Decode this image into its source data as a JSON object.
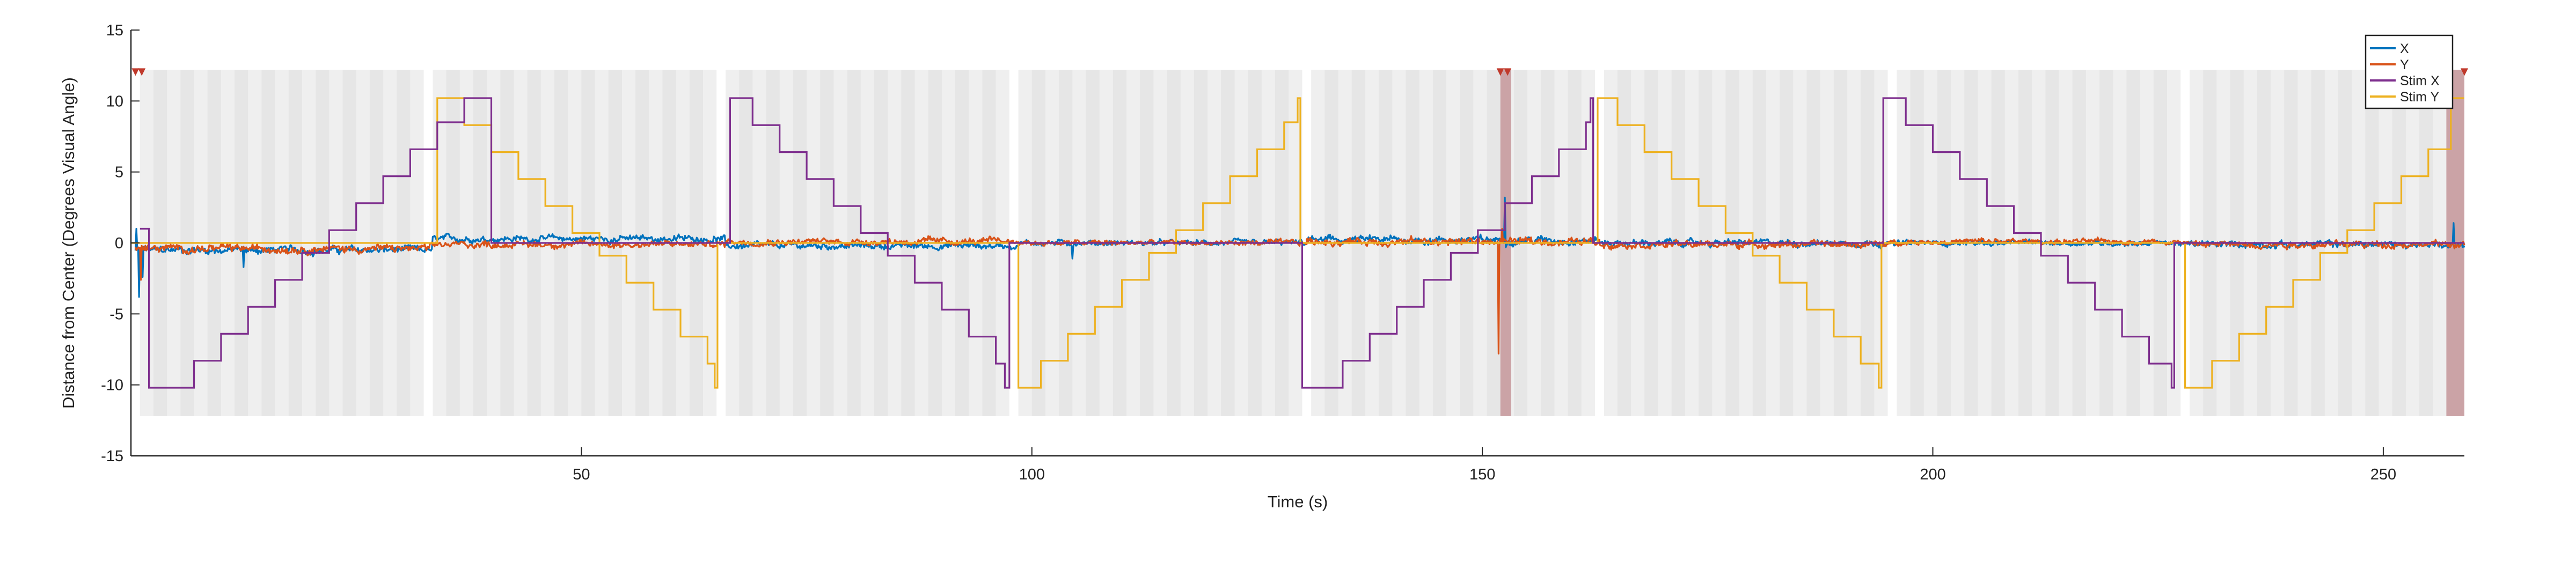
{
  "colors": {
    "x": "#0072BD",
    "y": "#D95319",
    "stim_x": "#7E2F8E",
    "stim_y": "#EDB120",
    "block_shade": "#EFEFEF",
    "stripe_shade": "#E6E6E6",
    "event_shade": "#CBA3A6",
    "event_marker": "#C0392B",
    "axis": "#262626"
  },
  "chart_data": {
    "type": "line",
    "title": "",
    "xlabel": "Time (s)",
    "ylabel": "Distance from Center (Degrees Visual Angle)",
    "xlim": [
      0,
      259
    ],
    "ylim": [
      -15,
      15
    ],
    "xticks": [
      50,
      100,
      150,
      200,
      250
    ],
    "yticks": [
      -15,
      -10,
      -5,
      0,
      5,
      10,
      15
    ],
    "grid": false,
    "legend_position": "top-right",
    "series": [
      {
        "name": "X",
        "key": "x",
        "color_key": "x"
      },
      {
        "name": "Y",
        "key": "y",
        "color_key": "y"
      },
      {
        "name": "Stim X",
        "key": "stim_x",
        "color_key": "stim_x"
      },
      {
        "name": "Stim Y",
        "key": "stim_y",
        "color_key": "stim_y"
      }
    ],
    "stim_x_steps": [
      {
        "t0": 1.0,
        "t1": 2.0,
        "v": 1.0
      },
      {
        "t0": 2.0,
        "t1": 4.0,
        "v": -10.2
      },
      {
        "t0": 4.0,
        "t1": 7.0,
        "v": -10.2
      },
      {
        "t0": 7.0,
        "t1": 10.0,
        "v": -8.3
      },
      {
        "t0": 10.0,
        "t1": 13.0,
        "v": -6.4
      },
      {
        "t0": 13.0,
        "t1": 16.0,
        "v": -4.5
      },
      {
        "t0": 16.0,
        "t1": 19.0,
        "v": -2.6
      },
      {
        "t0": 19.0,
        "t1": 22.0,
        "v": -0.7
      },
      {
        "t0": 22.0,
        "t1": 25.0,
        "v": 0.9
      },
      {
        "t0": 25.0,
        "t1": 28.0,
        "v": 2.8
      },
      {
        "t0": 28.0,
        "t1": 31.0,
        "v": 4.7
      },
      {
        "t0": 31.0,
        "t1": 34.0,
        "v": 6.6
      },
      {
        "t0": 34.0,
        "t1": 37.0,
        "v": 8.5
      },
      {
        "t0": 37.0,
        "t1": 40.0,
        "v": 10.2
      },
      {
        "t0": 40.0,
        "t1": 66.5,
        "v": 0.0
      },
      {
        "t0": 66.5,
        "t1": 69.0,
        "v": 10.2
      },
      {
        "t0": 69.0,
        "t1": 72.0,
        "v": 8.3
      },
      {
        "t0": 72.0,
        "t1": 75.0,
        "v": 6.4
      },
      {
        "t0": 75.0,
        "t1": 78.0,
        "v": 4.5
      },
      {
        "t0": 78.0,
        "t1": 81.0,
        "v": 2.6
      },
      {
        "t0": 81.0,
        "t1": 84.0,
        "v": 0.7
      },
      {
        "t0": 84.0,
        "t1": 87.0,
        "v": -0.9
      },
      {
        "t0": 87.0,
        "t1": 90.0,
        "v": -2.8
      },
      {
        "t0": 90.0,
        "t1": 93.0,
        "v": -4.7
      },
      {
        "t0": 93.0,
        "t1": 96.0,
        "v": -6.6
      },
      {
        "t0": 96.0,
        "t1": 97.0,
        "v": -8.5
      },
      {
        "t0": 97.0,
        "t1": 97.5,
        "v": -10.2
      },
      {
        "t0": 97.5,
        "t1": 130.0,
        "v": 0.0
      },
      {
        "t0": 130.0,
        "t1": 131.5,
        "v": -10.2
      },
      {
        "t0": 131.5,
        "t1": 134.5,
        "v": -10.2
      },
      {
        "t0": 134.5,
        "t1": 137.5,
        "v": -8.3
      },
      {
        "t0": 137.5,
        "t1": 140.5,
        "v": -6.4
      },
      {
        "t0": 140.5,
        "t1": 143.5,
        "v": -4.5
      },
      {
        "t0": 143.5,
        "t1": 146.5,
        "v": -2.6
      },
      {
        "t0": 146.5,
        "t1": 149.5,
        "v": -0.7
      },
      {
        "t0": 149.5,
        "t1": 152.5,
        "v": 0.9
      },
      {
        "t0": 152.5,
        "t1": 155.5,
        "v": 2.8
      },
      {
        "t0": 155.5,
        "t1": 158.5,
        "v": 4.7
      },
      {
        "t0": 158.5,
        "t1": 161.5,
        "v": 6.6
      },
      {
        "t0": 161.5,
        "t1": 162.0,
        "v": 8.5
      },
      {
        "t0": 162.0,
        "t1": 162.3,
        "v": 10.2
      },
      {
        "t0": 162.3,
        "t1": 194.5,
        "v": 0.0
      },
      {
        "t0": 194.5,
        "t1": 197.0,
        "v": 10.2
      },
      {
        "t0": 197.0,
        "t1": 200.0,
        "v": 8.3
      },
      {
        "t0": 200.0,
        "t1": 203.0,
        "v": 6.4
      },
      {
        "t0": 203.0,
        "t1": 206.0,
        "v": 4.5
      },
      {
        "t0": 206.0,
        "t1": 209.0,
        "v": 2.6
      },
      {
        "t0": 209.0,
        "t1": 212.0,
        "v": 0.7
      },
      {
        "t0": 212.0,
        "t1": 215.0,
        "v": -0.9
      },
      {
        "t0": 215.0,
        "t1": 218.0,
        "v": -2.8
      },
      {
        "t0": 218.0,
        "t1": 221.0,
        "v": -4.7
      },
      {
        "t0": 221.0,
        "t1": 224.0,
        "v": -6.6
      },
      {
        "t0": 224.0,
        "t1": 226.5,
        "v": -8.5
      },
      {
        "t0": 226.5,
        "t1": 226.8,
        "v": -10.2
      },
      {
        "t0": 226.8,
        "t1": 259.0,
        "v": 0.0
      }
    ],
    "stim_y_steps": [
      {
        "t0": 0.0,
        "t1": 34.0,
        "v": 0.0
      },
      {
        "t0": 34.0,
        "t1": 37.0,
        "v": 10.2
      },
      {
        "t0": 37.0,
        "t1": 40.0,
        "v": 8.3
      },
      {
        "t0": 40.0,
        "t1": 43.0,
        "v": 6.4
      },
      {
        "t0": 43.0,
        "t1": 46.0,
        "v": 4.5
      },
      {
        "t0": 46.0,
        "t1": 49.0,
        "v": 2.6
      },
      {
        "t0": 49.0,
        "t1": 52.0,
        "v": 0.7
      },
      {
        "t0": 52.0,
        "t1": 55.0,
        "v": -0.9
      },
      {
        "t0": 55.0,
        "t1": 58.0,
        "v": -2.8
      },
      {
        "t0": 58.0,
        "t1": 61.0,
        "v": -4.7
      },
      {
        "t0": 61.0,
        "t1": 64.0,
        "v": -6.6
      },
      {
        "t0": 64.0,
        "t1": 64.8,
        "v": -8.5
      },
      {
        "t0": 64.8,
        "t1": 65.1,
        "v": -10.2
      },
      {
        "t0": 65.1,
        "t1": 98.5,
        "v": 0.0
      },
      {
        "t0": 98.5,
        "t1": 101.0,
        "v": -10.2
      },
      {
        "t0": 101.0,
        "t1": 104.0,
        "v": -8.3
      },
      {
        "t0": 104.0,
        "t1": 107.0,
        "v": -6.4
      },
      {
        "t0": 107.0,
        "t1": 110.0,
        "v": -4.5
      },
      {
        "t0": 110.0,
        "t1": 113.0,
        "v": -2.6
      },
      {
        "t0": 113.0,
        "t1": 116.0,
        "v": -0.7
      },
      {
        "t0": 116.0,
        "t1": 119.0,
        "v": 0.9
      },
      {
        "t0": 119.0,
        "t1": 122.0,
        "v": 2.8
      },
      {
        "t0": 122.0,
        "t1": 125.0,
        "v": 4.7
      },
      {
        "t0": 125.0,
        "t1": 128.0,
        "v": 6.6
      },
      {
        "t0": 128.0,
        "t1": 129.5,
        "v": 8.5
      },
      {
        "t0": 129.5,
        "t1": 129.8,
        "v": 10.2
      },
      {
        "t0": 129.8,
        "t1": 162.8,
        "v": 0.0
      },
      {
        "t0": 162.8,
        "t1": 165.0,
        "v": 10.2
      },
      {
        "t0": 165.0,
        "t1": 168.0,
        "v": 8.3
      },
      {
        "t0": 168.0,
        "t1": 171.0,
        "v": 6.4
      },
      {
        "t0": 171.0,
        "t1": 174.0,
        "v": 4.5
      },
      {
        "t0": 174.0,
        "t1": 177.0,
        "v": 2.6
      },
      {
        "t0": 177.0,
        "t1": 180.0,
        "v": 0.7
      },
      {
        "t0": 180.0,
        "t1": 183.0,
        "v": -0.9
      },
      {
        "t0": 183.0,
        "t1": 186.0,
        "v": -2.8
      },
      {
        "t0": 186.0,
        "t1": 189.0,
        "v": -4.7
      },
      {
        "t0": 189.0,
        "t1": 192.0,
        "v": -6.6
      },
      {
        "t0": 192.0,
        "t1": 194.0,
        "v": -8.5
      },
      {
        "t0": 194.0,
        "t1": 194.3,
        "v": -10.2
      },
      {
        "t0": 194.3,
        "t1": 228.0,
        "v": 0.0
      },
      {
        "t0": 228.0,
        "t1": 231.0,
        "v": -10.2
      },
      {
        "t0": 231.0,
        "t1": 234.0,
        "v": -8.3
      },
      {
        "t0": 234.0,
        "t1": 237.0,
        "v": -6.4
      },
      {
        "t0": 237.0,
        "t1": 240.0,
        "v": -4.5
      },
      {
        "t0": 240.0,
        "t1": 243.0,
        "v": -2.6
      },
      {
        "t0": 243.0,
        "t1": 246.0,
        "v": -0.7
      },
      {
        "t0": 246.0,
        "t1": 249.0,
        "v": 0.9
      },
      {
        "t0": 249.0,
        "t1": 252.0,
        "v": 2.8
      },
      {
        "t0": 252.0,
        "t1": 255.0,
        "v": 4.7
      },
      {
        "t0": 255.0,
        "t1": 257.5,
        "v": 6.6
      },
      {
        "t0": 257.5,
        "t1": 259.0,
        "v": 10.2
      }
    ],
    "trial_blocks": [
      {
        "t0": 1.0,
        "t1": 32.5
      },
      {
        "t0": 33.5,
        "t1": 65.0
      },
      {
        "t0": 66.0,
        "t1": 97.5
      },
      {
        "t0": 98.5,
        "t1": 130.0
      },
      {
        "t0": 131.0,
        "t1": 162.5
      },
      {
        "t0": 163.5,
        "t1": 195.0
      },
      {
        "t0": 196.0,
        "t1": 227.5
      },
      {
        "t0": 228.5,
        "t1": 259.0
      }
    ],
    "shade_ymin": -12.2,
    "shade_ymax": 12.2,
    "events": [
      {
        "t0": 152.0,
        "t1": 153.2
      },
      {
        "t0": 257.0,
        "t1": 259.0
      }
    ],
    "event_markers": [
      {
        "t": 0.5,
        "y": 12.0
      },
      {
        "t": 1.2,
        "y": 12.0
      },
      {
        "t": 152.0,
        "y": 12.0
      },
      {
        "t": 152.8,
        "y": 12.0
      },
      {
        "t": 259.0,
        "y": 12.0
      }
    ],
    "gaze_segments": [
      {
        "t0": 0.5,
        "t1": 33.5,
        "x_base": -0.5,
        "y_base": -0.4,
        "noise": 0.35
      },
      {
        "t0": 33.5,
        "t1": 66.0,
        "x_base": 0.3,
        "y_base": -0.1,
        "noise": 0.3
      },
      {
        "t0": 66.0,
        "t1": 98.5,
        "x_base": -0.2,
        "y_base": 0.1,
        "noise": 0.3
      },
      {
        "t0": 98.5,
        "t1": 130.5,
        "x_base": 0.0,
        "y_base": 0.0,
        "noise": 0.25
      },
      {
        "t0": 130.5,
        "t1": 163.0,
        "x_base": 0.2,
        "y_base": 0.1,
        "noise": 0.35
      },
      {
        "t0": 163.0,
        "t1": 195.5,
        "x_base": 0.0,
        "y_base": -0.1,
        "noise": 0.3
      },
      {
        "t0": 195.5,
        "t1": 228.0,
        "x_base": 0.0,
        "y_base": 0.1,
        "noise": 0.25
      },
      {
        "t0": 228.0,
        "t1": 259.0,
        "x_base": -0.1,
        "y_base": -0.1,
        "noise": 0.3
      }
    ],
    "gaze_spikes": [
      {
        "series": "x",
        "t": 0.9,
        "v": -3.8
      },
      {
        "series": "x",
        "t": 1.3,
        "v": -2.4
      },
      {
        "series": "x",
        "t": 0.6,
        "v": 1.0
      },
      {
        "series": "y",
        "t": 1.1,
        "v": -2.6
      },
      {
        "series": "x",
        "t": 12.5,
        "v": -1.7
      },
      {
        "series": "x",
        "t": 104.5,
        "v": -1.1
      },
      {
        "series": "y",
        "t": 151.8,
        "v": -7.8
      },
      {
        "series": "x",
        "t": 152.5,
        "v": 3.2
      },
      {
        "series": "y",
        "t": 152.2,
        "v": 1.0
      },
      {
        "series": "x",
        "t": 257.8,
        "v": 1.4
      }
    ]
  }
}
